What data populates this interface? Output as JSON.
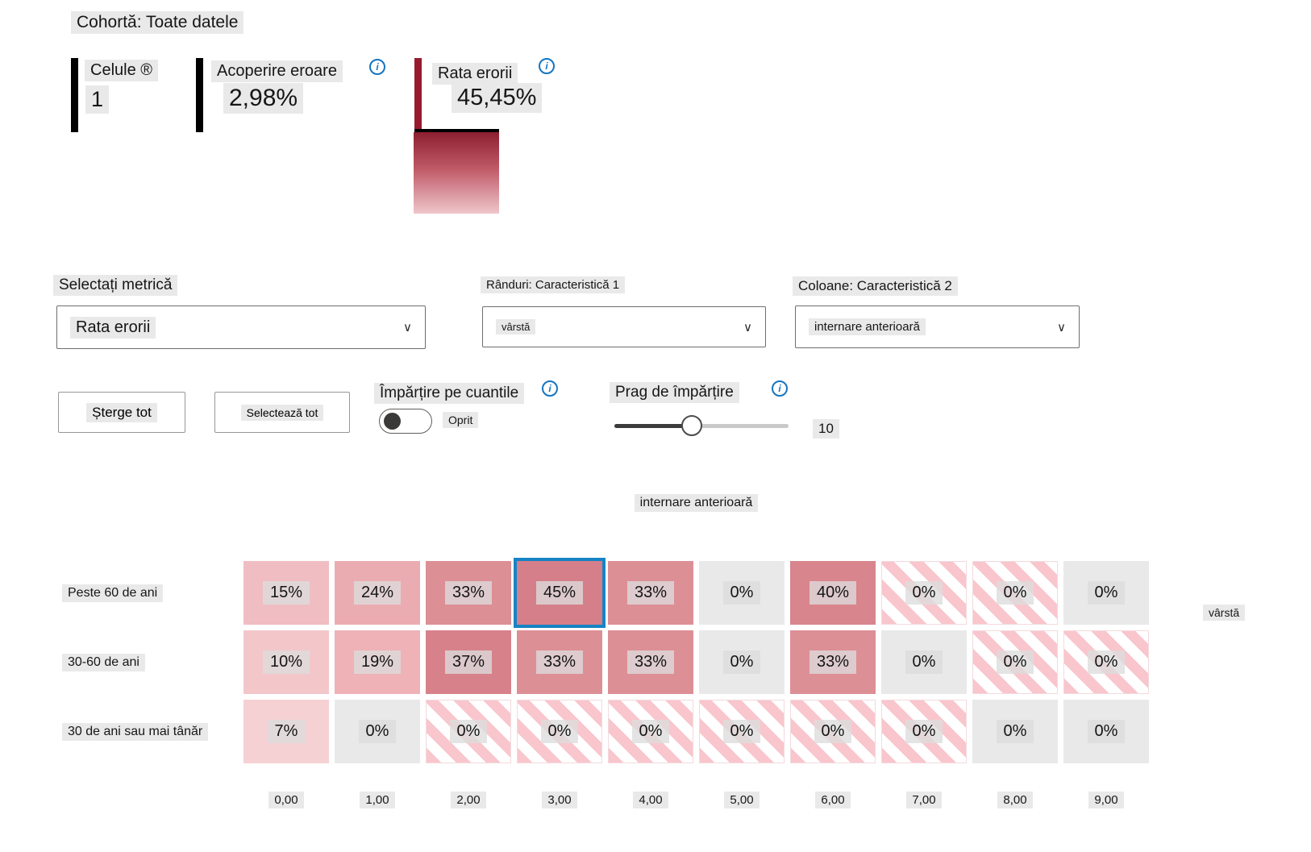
{
  "cohort_title": "Cohortă: Toate datele",
  "icons": {
    "info": "i",
    "chevron_down": "∨"
  },
  "colors": {
    "error_rate_bar": "#961b2e",
    "selected_cell_border": "#1684c4",
    "info_icon": "#1475c0",
    "empty_cell": "#e9e9e9"
  },
  "stats": {
    "cells": {
      "label": "Celule ®",
      "value": "1"
    },
    "error_coverage": {
      "label": "Acoperire eroare",
      "value": "2,98%"
    },
    "error_rate": {
      "label": "Rata erorii",
      "value": "45,45%"
    }
  },
  "controls": {
    "metric": {
      "label": "Selectați metrică",
      "value": "Rata erorii"
    },
    "rows_feature": {
      "label": "Rânduri: Caracteristică 1",
      "value": "vârstă"
    },
    "cols_feature": {
      "label": "Coloane: Caracteristică 2",
      "value": "internare anterioară"
    },
    "clear_all_label": "Șterge tot",
    "select_all_label": "Selectează tot",
    "quantile_toggle": {
      "label": "Împărțire pe cuantile",
      "state_label": "Oprit"
    },
    "threshold_slider": {
      "label": "Prag de împărțire",
      "value": "10"
    }
  },
  "chart_data": {
    "type": "heatmap",
    "column_axis_title": "internare anterioară",
    "row_axis_title": "vârstă",
    "rows": [
      "Peste 60 de ani",
      "30-60 de ani",
      "30 de ani sau mai tânăr"
    ],
    "columns": [
      "0,00",
      "1,00",
      "2,00",
      "3,00",
      "4,00",
      "5,00",
      "6,00",
      "7,00",
      "8,00",
      "9,00"
    ],
    "cells": [
      [
        {
          "text": "15%",
          "type": "fill",
          "color": "#f0bdc2"
        },
        {
          "text": "24%",
          "type": "fill",
          "color": "#ebacb1"
        },
        {
          "text": "33%",
          "type": "fill",
          "color": "#dd8f96"
        },
        {
          "text": "45%",
          "type": "fill",
          "color": "#d47f89",
          "selected": true
        },
        {
          "text": "33%",
          "type": "fill",
          "color": "#dd8f96"
        },
        {
          "text": "0%",
          "type": "empty"
        },
        {
          "text": "40%",
          "type": "fill",
          "color": "#d8858d"
        },
        {
          "text": "0%",
          "type": "striped"
        },
        {
          "text": "0%",
          "type": "striped"
        },
        {
          "text": "0%",
          "type": "empty"
        }
      ],
      [
        {
          "text": "10%",
          "type": "fill",
          "color": "#f3c7ca"
        },
        {
          "text": "19%",
          "type": "fill",
          "color": "#eeb2b7"
        },
        {
          "text": "37%",
          "type": "fill",
          "color": "#d7828b"
        },
        {
          "text": "33%",
          "type": "fill",
          "color": "#dd8f96"
        },
        {
          "text": "33%",
          "type": "fill",
          "color": "#dd8f96"
        },
        {
          "text": "0%",
          "type": "empty"
        },
        {
          "text": "33%",
          "type": "fill",
          "color": "#dd8f96"
        },
        {
          "text": "0%",
          "type": "empty"
        },
        {
          "text": "0%",
          "type": "striped"
        },
        {
          "text": "0%",
          "type": "striped"
        }
      ],
      [
        {
          "text": "7%",
          "type": "fill",
          "color": "#f5d1d3"
        },
        {
          "text": "0%",
          "type": "empty"
        },
        {
          "text": "0%",
          "type": "striped"
        },
        {
          "text": "0%",
          "type": "striped"
        },
        {
          "text": "0%",
          "type": "striped"
        },
        {
          "text": "0%",
          "type": "striped"
        },
        {
          "text": "0%",
          "type": "striped"
        },
        {
          "text": "0%",
          "type": "striped"
        },
        {
          "text": "0%",
          "type": "empty"
        },
        {
          "text": "0%",
          "type": "empty"
        }
      ]
    ]
  }
}
